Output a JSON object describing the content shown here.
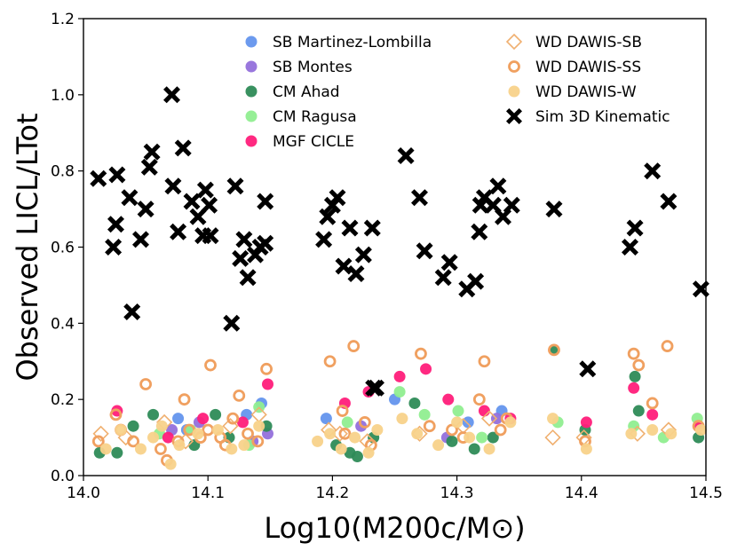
{
  "chart_data": {
    "type": "scatter",
    "title": "",
    "xlabel": "Log10(M200c/M⊙)",
    "ylabel": "Observed LICL/LTot",
    "xlim": [
      14.0,
      14.5
    ],
    "ylim": [
      0.0,
      1.2
    ],
    "xticks": [
      14.0,
      14.1,
      14.2,
      14.3,
      14.4,
      14.5
    ],
    "xtick_labels": [
      "14.0",
      "14.1",
      "14.2",
      "14.3",
      "14.4",
      "14.5"
    ],
    "yticks": [
      0.0,
      0.2,
      0.4,
      0.6,
      0.8,
      1.0,
      1.2
    ],
    "ytick_labels": [
      "0.0",
      "0.2",
      "0.4",
      "0.6",
      "0.8",
      "1.0",
      "1.2"
    ],
    "grid": false,
    "legend_placement": "top",
    "series": [
      {
        "name": "SB Martinez-Lombilla",
        "marker": "filled-circle",
        "color": "#6495ed",
        "x": [
          14.076,
          14.083,
          14.131,
          14.143,
          14.195,
          14.25,
          14.309,
          14.336
        ],
        "y": [
          0.15,
          0.12,
          0.16,
          0.19,
          0.15,
          0.2,
          0.14,
          0.17
        ]
      },
      {
        "name": "SB Montes",
        "marker": "filled-circle",
        "color": "#9370db",
        "x": [
          14.071,
          14.093,
          14.136,
          14.148,
          14.223,
          14.292,
          14.332
        ],
        "y": [
          0.12,
          0.14,
          0.09,
          0.11,
          0.13,
          0.1,
          0.15
        ]
      },
      {
        "name": "CM Ahad",
        "marker": "filled-circle",
        "color": "#2e8b57",
        "x": [
          14.013,
          14.027,
          14.04,
          14.056,
          14.089,
          14.106,
          14.117,
          14.147,
          14.203,
          14.214,
          14.22,
          14.233,
          14.266,
          14.296,
          14.314,
          14.329,
          14.378,
          14.403,
          14.443,
          14.446,
          14.494
        ],
        "y": [
          0.06,
          0.06,
          0.13,
          0.16,
          0.08,
          0.16,
          0.1,
          0.13,
          0.08,
          0.06,
          0.05,
          0.1,
          0.19,
          0.09,
          0.07,
          0.1,
          0.33,
          0.12,
          0.26,
          0.17,
          0.1
        ]
      },
      {
        "name": "CM Ragusa",
        "marker": "filled-circle",
        "color": "#90ee90",
        "x": [
          14.061,
          14.086,
          14.133,
          14.141,
          14.212,
          14.254,
          14.274,
          14.301,
          14.32,
          14.381,
          14.442,
          14.466,
          14.493
        ],
        "y": [
          0.11,
          0.12,
          0.08,
          0.18,
          0.14,
          0.22,
          0.16,
          0.17,
          0.1,
          0.14,
          0.13,
          0.1,
          0.15
        ]
      },
      {
        "name": "MGF CICLE",
        "marker": "filled-circle",
        "color": "#ff1e7a",
        "x": [
          14.027,
          14.068,
          14.096,
          14.128,
          14.148,
          14.21,
          14.229,
          14.254,
          14.275,
          14.293,
          14.322,
          14.343,
          14.404,
          14.442,
          14.457,
          14.494
        ],
        "y": [
          0.17,
          0.1,
          0.15,
          0.14,
          0.24,
          0.19,
          0.22,
          0.26,
          0.28,
          0.2,
          0.17,
          0.15,
          0.14,
          0.23,
          0.16,
          0.13
        ]
      },
      {
        "name": "WD DAWIS-SB",
        "marker": "open-diamond",
        "color": "#f0b070",
        "x": [
          14.014,
          14.034,
          14.065,
          14.082,
          14.118,
          14.141,
          14.197,
          14.206,
          14.228,
          14.27,
          14.305,
          14.326,
          14.377,
          14.402,
          14.445,
          14.47
        ],
        "y": [
          0.11,
          0.1,
          0.14,
          0.09,
          0.13,
          0.16,
          0.12,
          0.11,
          0.09,
          0.11,
          0.13,
          0.15,
          0.1,
          0.1,
          0.11,
          0.12
        ]
      },
      {
        "name": "WD DAWIS-SS",
        "marker": "open-circle",
        "color": "#f0a060",
        "x": [
          14.012,
          14.026,
          14.04,
          14.05,
          14.062,
          14.067,
          14.076,
          14.081,
          14.085,
          14.094,
          14.102,
          14.114,
          14.12,
          14.132,
          14.14,
          14.147,
          14.198,
          14.208,
          14.217,
          14.226,
          14.231,
          14.271,
          14.278,
          14.296,
          14.318,
          14.322,
          14.34,
          14.378,
          14.403,
          14.442,
          14.446,
          14.457,
          14.469,
          14.494,
          14.03,
          14.1,
          14.11,
          14.125,
          14.21,
          14.305,
          14.335
        ],
        "y": [
          0.09,
          0.16,
          0.09,
          0.24,
          0.07,
          0.04,
          0.09,
          0.2,
          0.12,
          0.1,
          0.29,
          0.08,
          0.15,
          0.11,
          0.09,
          0.28,
          0.3,
          0.17,
          0.34,
          0.14,
          0.08,
          0.32,
          0.13,
          0.12,
          0.2,
          0.3,
          0.15,
          0.33,
          0.09,
          0.32,
          0.29,
          0.19,
          0.34,
          0.13,
          0.12,
          0.12,
          0.1,
          0.21,
          0.11,
          0.1,
          0.12
        ]
      },
      {
        "name": "WD DAWIS-W",
        "marker": "filled-circle",
        "color": "#f8d28a",
        "x": [
          14.018,
          14.03,
          14.046,
          14.056,
          14.063,
          14.07,
          14.077,
          14.092,
          14.108,
          14.119,
          14.129,
          14.141,
          14.188,
          14.198,
          14.207,
          14.218,
          14.229,
          14.256,
          14.268,
          14.285,
          14.31,
          14.326,
          14.343,
          14.377,
          14.404,
          14.44,
          14.457,
          14.472,
          14.496,
          14.236,
          14.3
        ],
        "y": [
          0.07,
          0.12,
          0.07,
          0.1,
          0.13,
          0.03,
          0.08,
          0.11,
          0.12,
          0.07,
          0.08,
          0.13,
          0.09,
          0.11,
          0.07,
          0.1,
          0.06,
          0.15,
          0.11,
          0.08,
          0.1,
          0.07,
          0.14,
          0.15,
          0.07,
          0.11,
          0.12,
          0.11,
          0.12,
          0.12,
          0.14
        ]
      },
      {
        "name": "Sim 3D Kinematic",
        "marker": "x-thick",
        "color": "#000000",
        "x": [
          14.012,
          14.024,
          14.027,
          14.026,
          14.037,
          14.039,
          14.046,
          14.05,
          14.053,
          14.055,
          14.071,
          14.072,
          14.076,
          14.08,
          14.087,
          14.092,
          14.096,
          14.098,
          14.101,
          14.102,
          14.119,
          14.122,
          14.126,
          14.129,
          14.132,
          14.138,
          14.142,
          14.146,
          14.146,
          14.193,
          14.196,
          14.2,
          14.204,
          14.209,
          14.214,
          14.219,
          14.225,
          14.232,
          14.233,
          14.235,
          14.259,
          14.27,
          14.274,
          14.289,
          14.294,
          14.308,
          14.315,
          14.318,
          14.319,
          14.322,
          14.329,
          14.333,
          14.337,
          14.344,
          14.378,
          14.405,
          14.439,
          14.443,
          14.457,
          14.47,
          14.496
        ],
        "y": [
          0.78,
          0.6,
          0.79,
          0.66,
          0.73,
          0.43,
          0.62,
          0.7,
          0.81,
          0.85,
          1.0,
          0.76,
          0.64,
          0.86,
          0.72,
          0.68,
          0.63,
          0.75,
          0.71,
          0.63,
          0.4,
          0.76,
          0.57,
          0.62,
          0.52,
          0.58,
          0.6,
          0.61,
          0.72,
          0.62,
          0.68,
          0.71,
          0.73,
          0.55,
          0.65,
          0.53,
          0.58,
          0.65,
          0.23,
          0.23,
          0.84,
          0.73,
          0.59,
          0.52,
          0.56,
          0.49,
          0.51,
          0.64,
          0.71,
          0.73,
          0.71,
          0.76,
          0.68,
          0.71,
          0.7,
          0.28,
          0.6,
          0.65,
          0.8,
          0.72,
          0.49
        ]
      }
    ]
  }
}
